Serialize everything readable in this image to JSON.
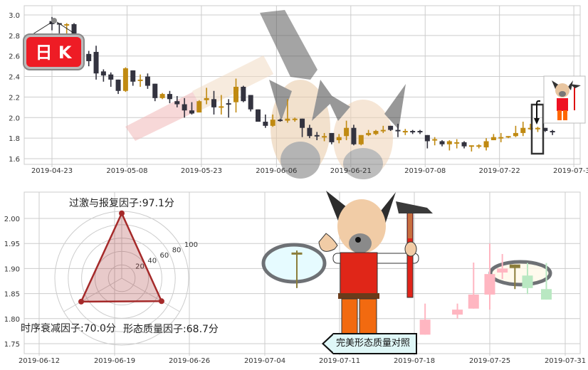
{
  "badge_label": "日 K",
  "callout_label": "完美形态质量对照",
  "colors": {
    "rise_top": "#c08a12",
    "fall_top": "#33333f",
    "rise_bottom": "#ffb6c1",
    "fall_bottom": "#b9e8c2",
    "template": "#8b7d3a",
    "radar": "#a52a2a",
    "badge": "#ee1c25"
  },
  "chart_data": [
    {
      "type": "candlestick",
      "title": "",
      "ylim": [
        1.55,
        3.05
      ],
      "y_ticks": [
        "1.6",
        "1.8",
        "2.0",
        "2.2",
        "2.4",
        "2.6",
        "2.8",
        "3.0"
      ],
      "x_ticks": [
        {
          "label": "2019-04-23",
          "at": 0
        },
        {
          "label": "2019-05-08",
          "at": 10.2
        },
        {
          "label": "2019-05-23",
          "at": 20.3
        },
        {
          "label": "2019-06-06",
          "at": 30.5
        },
        {
          "label": "2019-06-21",
          "at": 40.6
        },
        {
          "label": "2019-07-08",
          "at": 50.7
        },
        {
          "label": "2019-07-22",
          "at": 60.8
        },
        {
          "label": "2019-07-31",
          "at": 70.9
        }
      ],
      "grid": true,
      "candles_ohlc": [
        [
          2.94,
          2.98,
          2.85,
          2.91
        ],
        [
          2.92,
          2.92,
          2.82,
          2.91
        ],
        [
          2.9,
          2.92,
          2.81,
          2.91
        ],
        [
          2.91,
          2.92,
          2.7,
          2.75
        ],
        [
          2.75,
          2.78,
          2.58,
          2.6
        ],
        [
          2.62,
          2.65,
          2.5,
          2.55
        ],
        [
          2.64,
          2.7,
          2.37,
          2.43
        ],
        [
          2.45,
          2.47,
          2.35,
          2.41
        ],
        [
          2.42,
          2.44,
          2.3,
          2.37
        ],
        [
          2.37,
          2.37,
          2.23,
          2.26
        ],
        [
          2.26,
          2.49,
          2.25,
          2.48
        ],
        [
          2.46,
          2.46,
          2.31,
          2.35
        ],
        [
          2.36,
          2.42,
          2.3,
          2.37
        ],
        [
          2.4,
          2.43,
          2.28,
          2.31
        ],
        [
          2.33,
          2.33,
          2.16,
          2.19
        ],
        [
          2.19,
          2.24,
          2.18,
          2.23
        ],
        [
          2.23,
          2.26,
          2.14,
          2.18
        ],
        [
          2.16,
          2.21,
          2.1,
          2.13
        ],
        [
          2.13,
          2.19,
          2.0,
          2.07
        ],
        [
          2.07,
          2.15,
          2.03,
          2.04
        ],
        [
          2.05,
          2.17,
          2.05,
          2.16
        ],
        [
          2.17,
          2.29,
          2.13,
          2.19
        ],
        [
          2.18,
          2.26,
          2.03,
          2.1
        ],
        [
          2.1,
          2.22,
          2.03,
          2.11
        ],
        [
          2.14,
          2.18,
          2.0,
          2.13
        ],
        [
          2.15,
          2.38,
          2.05,
          2.3
        ],
        [
          2.3,
          2.31,
          2.15,
          2.16
        ],
        [
          2.22,
          2.22,
          2.06,
          2.08
        ],
        [
          2.08,
          2.08,
          1.96,
          1.96
        ],
        [
          1.96,
          2.03,
          1.9,
          1.92
        ],
        [
          1.92,
          2.03,
          1.91,
          1.98
        ],
        [
          1.98,
          1.99,
          1.96,
          1.97
        ],
        [
          1.97,
          2.18,
          1.95,
          1.99
        ],
        [
          1.98,
          2.0,
          1.96,
          1.99
        ],
        [
          1.99,
          1.99,
          1.81,
          1.9
        ],
        [
          1.9,
          1.93,
          1.8,
          1.82
        ],
        [
          1.83,
          1.86,
          1.78,
          1.82
        ],
        [
          1.81,
          1.85,
          1.77,
          1.82
        ],
        [
          1.85,
          1.85,
          1.74,
          1.76
        ],
        [
          1.78,
          1.84,
          1.75,
          1.81
        ],
        [
          1.82,
          1.97,
          1.78,
          1.9
        ],
        [
          1.9,
          1.93,
          1.73,
          1.74
        ],
        [
          1.74,
          1.83,
          1.73,
          1.83
        ],
        [
          1.83,
          1.88,
          1.82,
          1.85
        ],
        [
          1.84,
          1.88,
          1.83,
          1.87
        ],
        [
          1.87,
          1.92,
          1.85,
          1.88
        ],
        [
          1.92,
          1.92,
          1.87,
          1.88
        ],
        [
          1.88,
          1.94,
          1.81,
          1.87
        ],
        [
          1.86,
          1.89,
          1.83,
          1.87
        ],
        [
          1.87,
          1.88,
          1.84,
          1.86
        ],
        [
          1.87,
          1.88,
          1.84,
          1.86
        ],
        [
          1.83,
          1.83,
          1.7,
          1.77
        ],
        [
          1.78,
          1.81,
          1.73,
          1.79
        ],
        [
          1.77,
          1.78,
          1.72,
          1.74
        ],
        [
          1.74,
          1.78,
          1.68,
          1.77
        ],
        [
          1.75,
          1.79,
          1.7,
          1.76
        ],
        [
          1.76,
          1.77,
          1.7,
          1.72
        ],
        [
          1.72,
          1.73,
          1.67,
          1.73
        ],
        [
          1.72,
          1.74,
          1.7,
          1.73
        ],
        [
          1.71,
          1.8,
          1.68,
          1.77
        ],
        [
          1.78,
          1.84,
          1.78,
          1.81
        ],
        [
          1.8,
          1.85,
          1.76,
          1.81
        ],
        [
          1.81,
          1.82,
          1.8,
          1.82
        ],
        [
          1.82,
          1.92,
          1.81,
          1.85
        ],
        [
          1.85,
          1.96,
          1.82,
          1.9
        ],
        [
          1.89,
          1.94,
          1.88,
          1.9
        ],
        [
          1.9,
          1.91,
          1.86,
          1.9
        ],
        [
          1.9,
          1.9,
          1.86,
          1.87
        ],
        [
          1.87,
          1.88,
          1.83,
          1.86
        ]
      ]
    },
    {
      "type": "candlestick",
      "title": "",
      "ylim": [
        1.73,
        2.035
      ],
      "y_ticks": [
        "1.75",
        "1.80",
        "1.85",
        "1.90",
        "1.95",
        "2.00"
      ],
      "x_ticks": [
        "2019-06-12",
        "2019-06-19",
        "2019-06-26",
        "2019-07-04",
        "2019-07-11",
        "2019-07-18",
        "2019-07-25",
        "2019-07-31"
      ],
      "grid": true,
      "template_candles": [
        {
          "date": "2019-07-07",
          "o": 1.928,
          "h": 1.936,
          "l": 1.861,
          "c": 1.932
        },
        {
          "date": "2019-07-27",
          "o": 1.901,
          "h": 1.908,
          "l": 1.859,
          "c": 1.908
        }
      ],
      "candles": [
        {
          "date": "2019-07-19",
          "o": 1.768,
          "h": 1.83,
          "l": 1.768,
          "c": 1.798
        },
        {
          "date": "2019-07-22",
          "o": 1.808,
          "h": 1.83,
          "l": 1.8,
          "c": 1.818
        },
        {
          "date": "2019-07-23.5",
          "o": 1.82,
          "h": 1.912,
          "l": 1.82,
          "c": 1.848
        },
        {
          "date": "2019-07-25",
          "o": 1.848,
          "h": 1.95,
          "l": 1.818,
          "c": 1.889
        },
        {
          "date": "2019-07-26",
          "o": 1.892,
          "h": 1.929,
          "l": 1.879,
          "c": 1.9
        },
        {
          "date": "2019-07-28",
          "o": 1.886,
          "h": 1.911,
          "l": 1.849,
          "c": 1.861
        },
        {
          "date": "2019-07-29.5",
          "o": 1.859,
          "h": 1.911,
          "l": 1.838,
          "c": 1.838
        }
      ]
    },
    {
      "type": "radar",
      "rings": [
        "20",
        "40",
        "60",
        "80",
        "100"
      ],
      "rmax": 100,
      "axes": [
        {
          "label": "过激与报复因子:97.1分",
          "value": 97.1
        },
        {
          "label": "时序衰减因子:70.0分",
          "value": 70.0
        },
        {
          "label": "形态质量因子:68.7分",
          "value": 68.7
        }
      ]
    }
  ]
}
